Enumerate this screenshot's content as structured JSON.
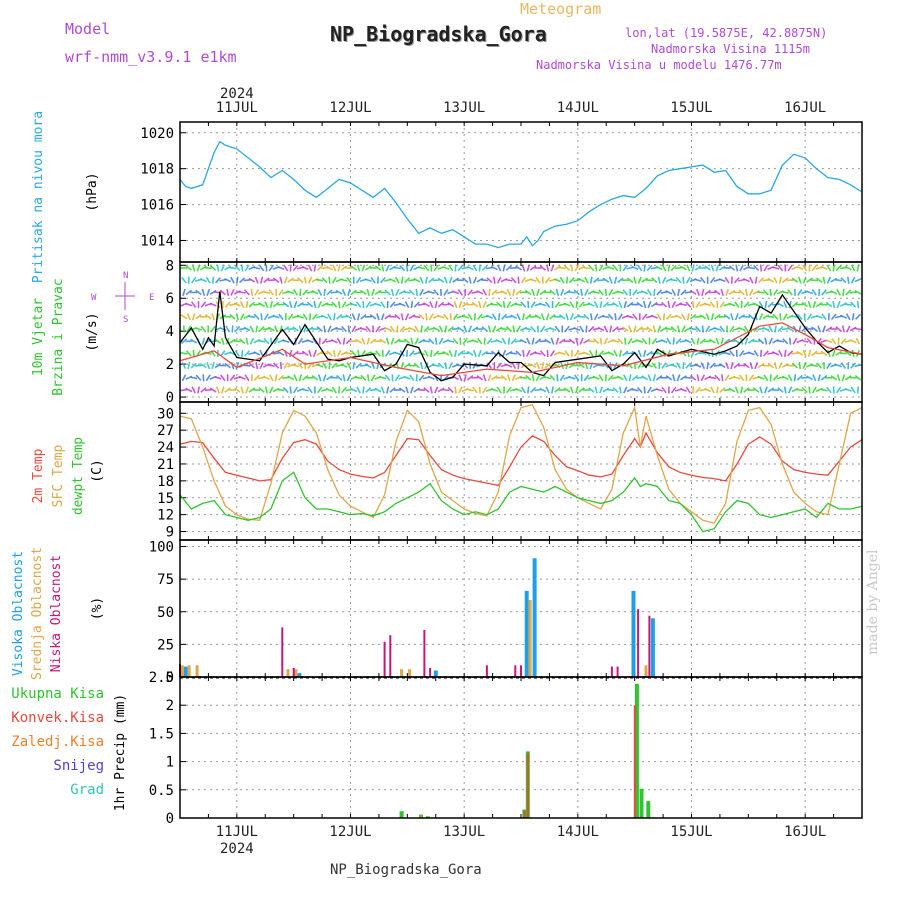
{
  "header": {
    "model_label": "Model",
    "model_name": "wrf-nmm_v3.9.1 e1km",
    "meteogram_label": "Meteogram",
    "station_title": "NP_Biogradska_Gora",
    "coords": "lon,lat (19.5875E, 42.8875N)",
    "elevation": "Nadmorska Visina 1115m",
    "model_elevation": "Nadmorska Visina u modelu 1476.77m",
    "footer_title": "NP_Biogradska_Gora",
    "watermark": "made by Angel"
  },
  "colors": {
    "pressure": "#2aa8e0",
    "temp2m": "#e84a3c",
    "sfctemp": "#e0a64a",
    "dewpt": "#2fc42f",
    "high_cloud": "#1e9fe6",
    "mid_cloud": "#e0a64a",
    "low_cloud": "#c8157a",
    "total_rain": "#2fc42f",
    "conv_rain": "#e84a3c",
    "freezing_rain": "#f27f2c",
    "snow": "#4c3fd6",
    "hail": "#2ec5b6",
    "title_purple": "#b04ad6",
    "meteogram_orange": "#e8b860"
  },
  "chart_data": [
    {
      "type": "line",
      "panel": "pressure",
      "ylabel": "Pritisak na nivou mora",
      "unit": "(hPa)",
      "yticks": [
        1014,
        1016,
        1018,
        1020
      ],
      "ylim": [
        1012.8,
        1020.6
      ],
      "x_unit": "days since 2024-07-10 00:00 UTC",
      "xlim": [
        0.5,
        6.5
      ],
      "year": "2024",
      "date_ticks": [
        "11JUL",
        "12JUL",
        "13JUL",
        "14JUL",
        "15JUL",
        "16JUL"
      ],
      "grid": true,
      "series": [
        {
          "x": [
            0.5,
            0.55,
            0.6,
            0.7,
            0.8,
            0.85,
            0.9,
            1.0,
            1.1,
            1.2,
            1.3,
            1.4,
            1.5,
            1.6,
            1.7,
            1.8,
            1.9,
            2.0,
            2.1,
            2.2,
            2.3,
            2.4,
            2.5,
            2.6,
            2.7,
            2.8,
            2.9,
            3.0,
            3.1,
            3.2,
            3.3,
            3.4,
            3.5,
            3.55,
            3.6,
            3.65,
            3.7,
            3.8,
            3.9,
            4.0,
            4.1,
            4.2,
            4.3,
            4.4,
            4.5,
            4.6,
            4.7,
            4.8,
            4.9,
            5.0,
            5.1,
            5.2,
            5.3,
            5.4,
            5.5,
            5.6,
            5.7,
            5.8,
            5.9,
            6.0,
            6.1,
            6.2,
            6.3,
            6.4,
            6.5
          ],
          "values": [
            1017.4,
            1017.0,
            1016.9,
            1017.1,
            1018.9,
            1019.5,
            1019.3,
            1019.1,
            1018.6,
            1018.1,
            1017.5,
            1017.9,
            1017.4,
            1016.8,
            1016.4,
            1016.9,
            1017.4,
            1017.2,
            1016.8,
            1016.4,
            1016.9,
            1016.1,
            1015.2,
            1014.4,
            1014.7,
            1014.4,
            1014.6,
            1014.2,
            1013.8,
            1013.8,
            1013.6,
            1013.8,
            1013.8,
            1014.2,
            1013.7,
            1014.0,
            1014.5,
            1014.8,
            1014.9,
            1015.1,
            1015.6,
            1016.0,
            1016.3,
            1016.5,
            1016.4,
            1016.9,
            1017.6,
            1017.9,
            1018.0,
            1018.1,
            1018.2,
            1017.8,
            1017.9,
            1017.0,
            1016.6,
            1016.6,
            1016.8,
            1018.2,
            1018.8,
            1018.6,
            1018.0,
            1017.5,
            1017.4,
            1017.1,
            1016.7
          ],
          "color": "#2aa8e0"
        }
      ]
    },
    {
      "type": "line",
      "panel": "wind",
      "ylabel": "10m Vjetar Brzina i Pravac",
      "unit": "(m/s)",
      "yticks": [
        0,
        2,
        4,
        6,
        8
      ],
      "ylim": [
        -0.3,
        8.2
      ],
      "compass": {
        "north": "N",
        "south": "S",
        "east": "E",
        "west": "W"
      },
      "series": [
        {
          "x": [
            0.5,
            0.6,
            0.7,
            0.75,
            0.8,
            0.85,
            0.9,
            1.0,
            1.2,
            1.4,
            1.5,
            1.6,
            1.8,
            1.9,
            2.0,
            2.2,
            2.3,
            2.4,
            2.5,
            2.6,
            2.7,
            2.8,
            2.9,
            3.0,
            3.2,
            3.3,
            3.4,
            3.5,
            3.6,
            3.7,
            3.8,
            4.0,
            4.2,
            4.3,
            4.4,
            4.5,
            4.6,
            4.7,
            4.8,
            5.0,
            5.2,
            5.3,
            5.4,
            5.5,
            5.6,
            5.7,
            5.8,
            5.9,
            6.0,
            6.1,
            6.2,
            6.3,
            6.4,
            6.5
          ],
          "values": [
            3.3,
            4.2,
            2.9,
            3.6,
            3.1,
            6.4,
            3.6,
            2.4,
            2.2,
            4.1,
            3.2,
            4.4,
            2.3,
            2.2,
            2.4,
            2.6,
            1.6,
            2.0,
            3.2,
            3.0,
            1.5,
            1.0,
            1.2,
            2.0,
            1.9,
            2.7,
            2.1,
            2.1,
            1.5,
            1.3,
            2.1,
            2.3,
            2.5,
            1.6,
            2.0,
            2.7,
            1.8,
            2.9,
            2.5,
            2.9,
            2.6,
            2.8,
            3.1,
            3.8,
            5.5,
            5.1,
            6.2,
            5.2,
            4.2,
            3.4,
            2.7,
            3.1,
            2.7,
            2.6
          ],
          "color": "#000000"
        },
        {
          "x": [
            0.5,
            0.8,
            1.0,
            1.4,
            1.6,
            2.0,
            2.4,
            2.8,
            3.2,
            3.6,
            4.0,
            4.4,
            4.8,
            5.2,
            5.6,
            5.8,
            6.0,
            6.2,
            6.5
          ],
          "values": [
            2.2,
            2.8,
            1.8,
            2.9,
            2.0,
            2.4,
            1.8,
            1.3,
            1.7,
            1.5,
            2.1,
            1.9,
            2.6,
            2.9,
            4.3,
            4.5,
            3.8,
            3.0,
            2.6
          ],
          "color": "#e84a3c"
        }
      ]
    },
    {
      "type": "line",
      "panel": "temperature",
      "ylabel": "2m Temp SFC Temp dewpt Temp",
      "unit": "(C)",
      "yticks": [
        9,
        12,
        15,
        18,
        21,
        24,
        27,
        30
      ],
      "ylim": [
        7.5,
        32.0
      ],
      "series": [
        {
          "name": "2m Temp",
          "x": [
            0.5,
            0.6,
            0.7,
            0.8,
            0.9,
            1.0,
            1.1,
            1.2,
            1.3,
            1.4,
            1.5,
            1.6,
            1.7,
            1.8,
            1.9,
            2.0,
            2.1,
            2.2,
            2.3,
            2.4,
            2.5,
            2.6,
            2.7,
            2.8,
            2.9,
            3.0,
            3.1,
            3.2,
            3.3,
            3.4,
            3.5,
            3.6,
            3.7,
            3.8,
            3.9,
            4.0,
            4.1,
            4.2,
            4.3,
            4.4,
            4.5,
            4.55,
            4.6,
            4.7,
            4.8,
            4.9,
            5.0,
            5.1,
            5.2,
            5.3,
            5.4,
            5.5,
            5.6,
            5.7,
            5.8,
            5.9,
            6.0,
            6.1,
            6.2,
            6.3,
            6.4,
            6.5
          ],
          "values": [
            24.5,
            25.0,
            24.8,
            22.0,
            19.5,
            19.0,
            18.5,
            18.0,
            18.2,
            22.0,
            24.8,
            25.3,
            24.5,
            21.5,
            20.0,
            19.2,
            18.8,
            18.5,
            19.5,
            22.5,
            25.5,
            25.3,
            22.5,
            20.0,
            19.0,
            18.4,
            18.0,
            17.6,
            17.2,
            20.5,
            24.0,
            26.0,
            25.0,
            22.5,
            20.5,
            19.8,
            19.0,
            18.7,
            19.2,
            22.5,
            25.5,
            24.0,
            26.5,
            23.0,
            20.5,
            19.5,
            19.0,
            18.6,
            18.4,
            18.0,
            21.0,
            24.5,
            25.8,
            24.5,
            21.5,
            20.0,
            19.5,
            19.2,
            19.0,
            21.5,
            24.0,
            25.3
          ],
          "color": "#e84a3c"
        },
        {
          "name": "SFC Temp",
          "x": [
            0.5,
            0.6,
            0.7,
            0.8,
            0.9,
            1.0,
            1.1,
            1.2,
            1.3,
            1.4,
            1.5,
            1.6,
            1.7,
            1.8,
            1.9,
            2.0,
            2.1,
            2.2,
            2.3,
            2.4,
            2.5,
            2.6,
            2.7,
            2.8,
            2.9,
            3.0,
            3.1,
            3.2,
            3.3,
            3.4,
            3.5,
            3.6,
            3.7,
            3.8,
            3.9,
            4.0,
            4.1,
            4.2,
            4.3,
            4.4,
            4.5,
            4.55,
            4.6,
            4.7,
            4.8,
            4.9,
            5.0,
            5.1,
            5.2,
            5.3,
            5.4,
            5.5,
            5.6,
            5.7,
            5.8,
            5.9,
            6.0,
            6.1,
            6.2,
            6.3,
            6.4,
            6.5
          ],
          "values": [
            29.5,
            29.0,
            24.0,
            18.0,
            13.5,
            12.0,
            11.2,
            11.0,
            17.5,
            26.5,
            30.5,
            29.5,
            26.5,
            20.0,
            15.5,
            13.5,
            12.5,
            11.5,
            15.5,
            25.0,
            30.5,
            28.5,
            21.0,
            16.0,
            14.5,
            13.0,
            12.2,
            11.8,
            16.0,
            26.0,
            31.0,
            31.5,
            27.5,
            20.0,
            16.5,
            15.0,
            14.0,
            13.0,
            16.5,
            26.5,
            31.0,
            24.0,
            29.5,
            22.5,
            16.5,
            14.0,
            12.5,
            11.0,
            10.5,
            14.0,
            25.0,
            30.5,
            31.0,
            28.0,
            21.0,
            16.0,
            14.0,
            12.5,
            12.0,
            21.0,
            30.0,
            31.0
          ],
          "color": "#e0a64a"
        },
        {
          "name": "dewpt Temp",
          "x": [
            0.5,
            0.6,
            0.7,
            0.8,
            0.9,
            1.0,
            1.1,
            1.2,
            1.3,
            1.4,
            1.5,
            1.6,
            1.7,
            1.8,
            1.9,
            2.0,
            2.1,
            2.2,
            2.3,
            2.4,
            2.5,
            2.6,
            2.7,
            2.8,
            2.9,
            3.0,
            3.1,
            3.2,
            3.3,
            3.4,
            3.5,
            3.6,
            3.7,
            3.8,
            3.9,
            4.0,
            4.1,
            4.2,
            4.3,
            4.4,
            4.5,
            4.55,
            4.6,
            4.7,
            4.8,
            4.9,
            5.0,
            5.1,
            5.2,
            5.3,
            5.4,
            5.5,
            5.6,
            5.7,
            5.8,
            5.9,
            6.0,
            6.1,
            6.2,
            6.3,
            6.4,
            6.5
          ],
          "values": [
            15.5,
            13.0,
            14.0,
            14.5,
            12.0,
            11.5,
            11.0,
            11.5,
            13.0,
            18.0,
            19.5,
            15.0,
            13.0,
            13.0,
            12.5,
            12.0,
            12.2,
            11.8,
            12.5,
            14.0,
            15.0,
            16.0,
            17.5,
            14.5,
            13.0,
            12.0,
            12.5,
            12.0,
            13.0,
            16.0,
            17.0,
            16.5,
            16.0,
            17.0,
            16.0,
            15.0,
            14.5,
            14.0,
            14.5,
            16.0,
            18.5,
            17.0,
            17.5,
            17.0,
            14.5,
            14.0,
            12.0,
            9.0,
            9.5,
            12.5,
            14.5,
            14.0,
            12.0,
            11.5,
            12.0,
            12.5,
            13.0,
            11.5,
            14.0,
            13.0,
            13.0,
            13.5
          ],
          "color": "#2fc42f"
        }
      ]
    },
    {
      "type": "bar",
      "panel": "cloud",
      "ylabel": "Visoka Oblacnost Srednja Oblacnost Niska Oblacnost",
      "unit": "(%)",
      "yticks": [
        0,
        25,
        50,
        75,
        100
      ],
      "ylim": [
        0,
        105
      ],
      "series": [
        {
          "name": "Visoka Oblacnost",
          "x": [
            0.55,
            1.55,
            2.75,
            3.55,
            3.62,
            4.49,
            4.66
          ],
          "values": [
            8,
            3,
            5,
            66,
            91,
            66,
            45
          ],
          "color": "#1e9fe6"
        },
        {
          "name": "Srednja Oblacnost",
          "x": [
            0.52,
            0.58,
            0.65,
            1.45,
            1.52,
            2.45,
            2.52,
            3.58,
            4.6
          ],
          "values": [
            9,
            9,
            9,
            6,
            6,
            6,
            6,
            59,
            9
          ],
          "color": "#e0a64a"
        },
        {
          "name": "Niska Oblacnost",
          "x": [
            0.5,
            1.4,
            1.5,
            2.3,
            2.35,
            2.65,
            2.7,
            3.2,
            3.45,
            3.5,
            4.3,
            4.35,
            4.53,
            4.63
          ],
          "values": [
            10,
            38,
            7,
            27,
            32,
            36,
            7,
            9,
            9,
            9,
            8,
            8,
            52,
            47
          ],
          "color": "#c8157a"
        }
      ]
    },
    {
      "type": "bar",
      "panel": "precip",
      "ylabel": "1hr Precip",
      "unit": "(mm)",
      "yticks": [
        0,
        0.5,
        1,
        1.5,
        2,
        2.5
      ],
      "ylim": [
        0,
        2.5
      ],
      "legend": [
        "Ukupna Kisa",
        "Konvek.Kisa",
        "Zaledj.Kisa",
        "Snijeg",
        "Grad"
      ],
      "series": [
        {
          "name": "Ukupna Kisa",
          "x": [
            2.45,
            2.62,
            2.68,
            3.53,
            3.56,
            4.52,
            4.56,
            4.62
          ],
          "values": [
            0.12,
            0.06,
            0.03,
            0.15,
            1.18,
            2.38,
            0.52,
            0.3
          ],
          "color": "#2fc42f"
        },
        {
          "name": "Konvek.Kisa",
          "x": [
            3.54,
            3.57,
            4.51
          ],
          "values": [
            0.13,
            1.15,
            2.0
          ],
          "color": "#e84a3c"
        },
        {
          "name": "Zaledj.Kisa",
          "x": [
            2.63
          ],
          "values": [
            0.05
          ],
          "color": "#f27f2c"
        }
      ]
    }
  ]
}
